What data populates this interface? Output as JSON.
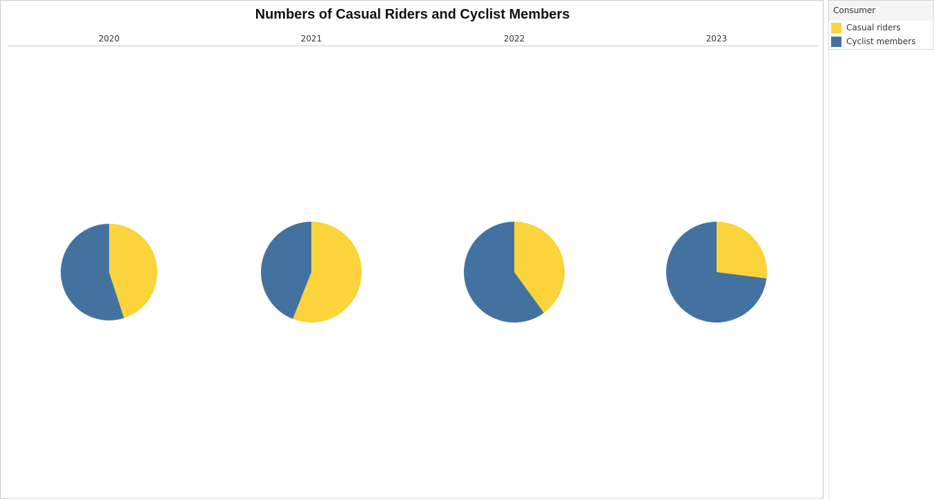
{
  "chart_data": {
    "type": "pie",
    "title": "Numbers of Casual Riders and Cyclist Members",
    "categories": [
      "2020",
      "2021",
      "2022",
      "2023"
    ],
    "series": [
      {
        "name": "Casual riders",
        "values": [
          45,
          56,
          40,
          27
        ]
      },
      {
        "name": "Cyclist members",
        "values": [
          55,
          44,
          60,
          73
        ]
      }
    ],
    "legend_position": "right",
    "grid": false
  },
  "legend": {
    "title": "Consumer",
    "items": [
      {
        "label": "Casual riders",
        "color": "#fbd33a"
      },
      {
        "label": "Cyclist members",
        "color": "#4472a0"
      }
    ]
  }
}
